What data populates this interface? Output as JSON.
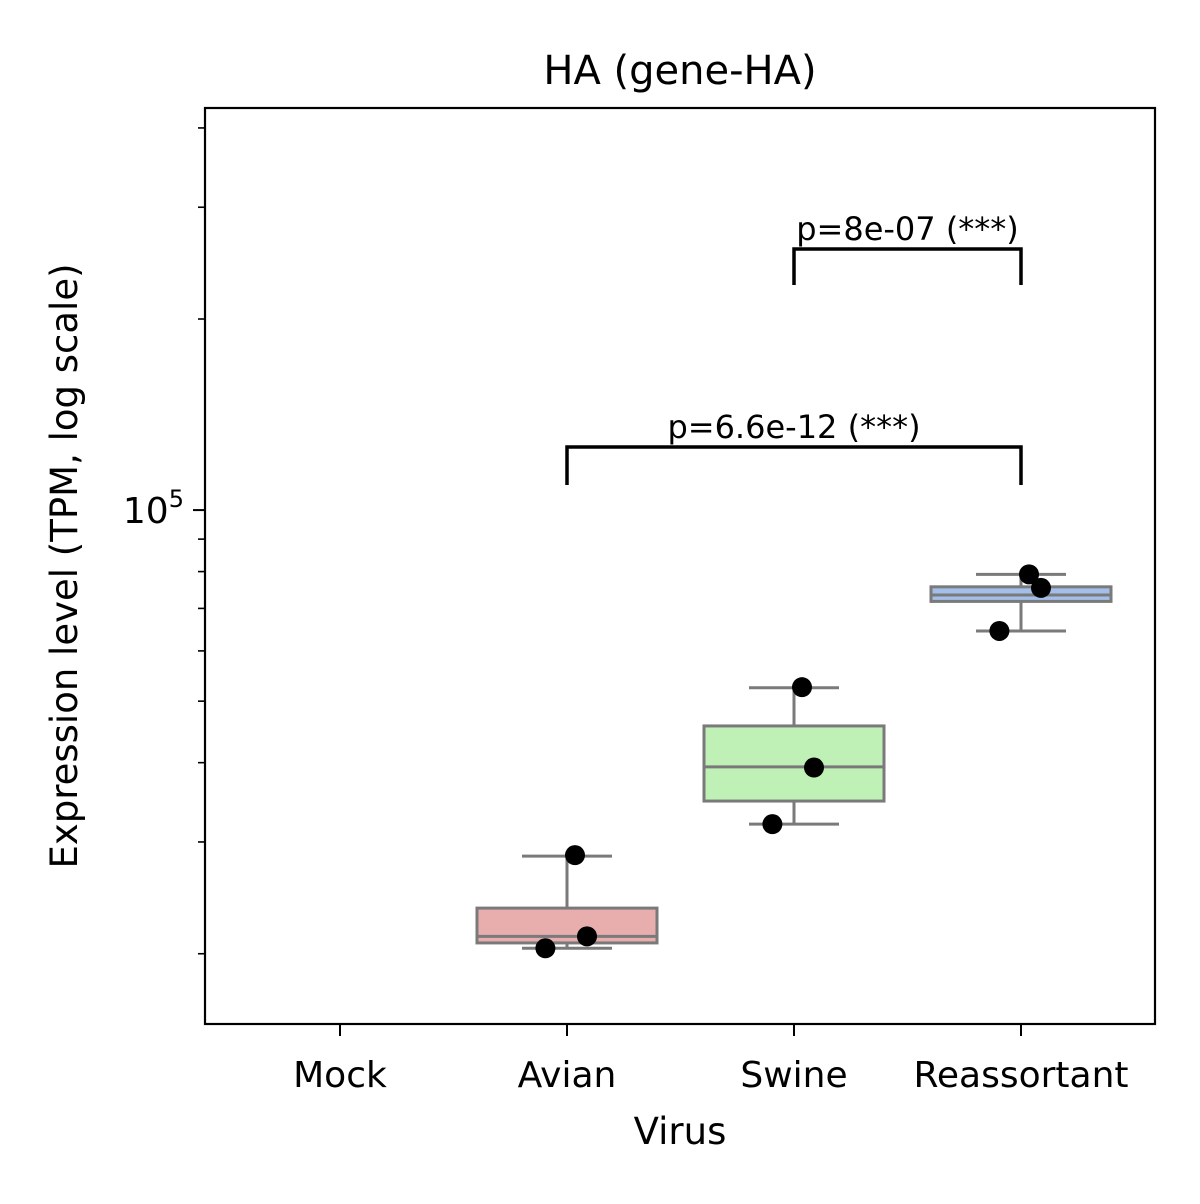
{
  "chart_data": {
    "type": "box",
    "title": "HA (gene-HA)",
    "xlabel": "Virus",
    "ylabel": "Expression level (TPM, log scale)",
    "yscale": "log",
    "ylim": [
      15500,
      430000
    ],
    "y_major_tick": {
      "value": 100000,
      "base": "10",
      "exponent": "5"
    },
    "grid": false,
    "categories": [
      "Mock",
      "Avian",
      "Swine",
      "Reassortant"
    ],
    "boxes": [
      {
        "category": "Mock",
        "present": false,
        "color": ""
      },
      {
        "category": "Avian",
        "present": true,
        "color": "#e8aeae",
        "whisker_low": 20400,
        "q1": 20800,
        "median": 21300,
        "q3": 23600,
        "whisker_high": 28500,
        "points": [
          20400,
          21300,
          28600
        ]
      },
      {
        "category": "Swine",
        "present": true,
        "color": "#bff0b6",
        "whisker_low": 32000,
        "q1": 34800,
        "median": 39400,
        "q3": 45700,
        "whisker_high": 52500,
        "points": [
          32000,
          39300,
          52600
        ]
      },
      {
        "category": "Reassortant",
        "present": true,
        "color": "#a3bfe9",
        "whisker_low": 64500,
        "q1": 71800,
        "median": 73500,
        "q3": 75700,
        "whisker_high": 79200,
        "points": [
          64500,
          75400,
          79200
        ]
      }
    ],
    "point_color": "#000000",
    "significance": [
      {
        "from": "Avian",
        "to": "Reassortant",
        "label": "p=6.6e-12 (***)"
      },
      {
        "from": "Swine",
        "to": "Reassortant",
        "label": "p=8e-07 (***)"
      }
    ]
  }
}
